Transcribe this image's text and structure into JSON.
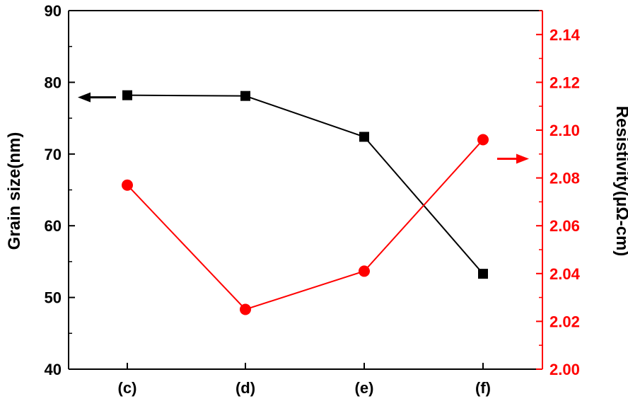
{
  "chart_data": {
    "type": "line",
    "categories": [
      "(c)",
      "(d)",
      "(e)",
      "(f)"
    ],
    "y_left": {
      "label": "Grain size(nm)",
      "lim": [
        40,
        90
      ],
      "ticks": [
        "40",
        "50",
        "60",
        "70",
        "80",
        "90"
      ],
      "color": "#000000"
    },
    "y_right": {
      "label": "Resistivity(μΩ-cm)",
      "lim": [
        2.0,
        2.15
      ],
      "ticks": [
        "2.00",
        "2.02",
        "2.04",
        "2.06",
        "2.08",
        "2.10",
        "2.12",
        "2.14"
      ],
      "color": "#ff0000"
    },
    "series": [
      {
        "axis": "left",
        "marker": "square",
        "color": "#000000",
        "values": [
          78.2,
          78.1,
          72.4,
          53.3
        ]
      },
      {
        "axis": "right",
        "marker": "circle",
        "color": "#ff0000",
        "values": [
          2.077,
          2.025,
          2.041,
          2.096
        ]
      }
    ],
    "annotations": [
      {
        "type": "arrow",
        "direction": "left",
        "axis": "left",
        "color": "#000000"
      },
      {
        "type": "arrow",
        "direction": "right",
        "axis": "right",
        "color": "#ff0000"
      }
    ],
    "grid": false
  }
}
